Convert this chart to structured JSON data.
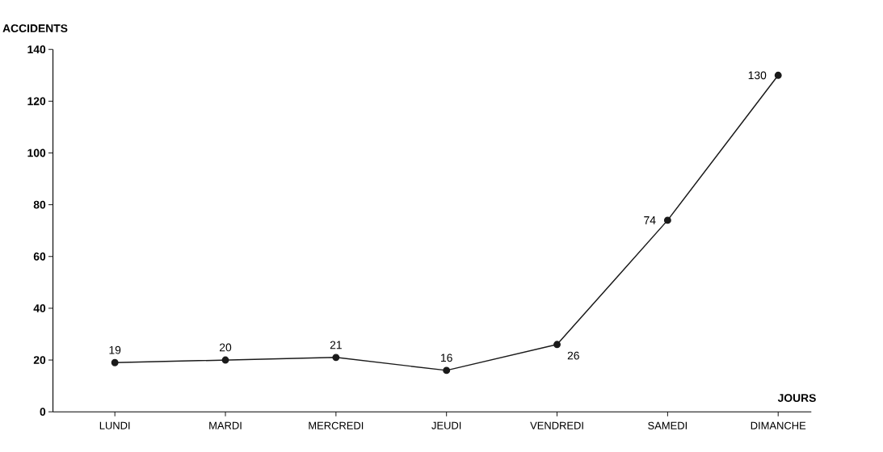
{
  "chart_data": {
    "type": "line",
    "xlabel": "JOURS",
    "ylabel": "ACCIDENTS",
    "categories": [
      "LUNDI",
      "MARDI",
      "MERCREDI",
      "JEUDI",
      "VENDREDI",
      "SAMEDI",
      "DIMANCHE"
    ],
    "values": [
      19,
      20,
      21,
      16,
      26,
      74,
      130
    ],
    "color": "#1a1a1a",
    "marker": "circle",
    "line_style": "solid",
    "data_labels": true,
    "grid": false,
    "ylim": [
      0,
      140
    ],
    "yticks": [
      0,
      20,
      40,
      60,
      80,
      100,
      120,
      140
    ]
  }
}
